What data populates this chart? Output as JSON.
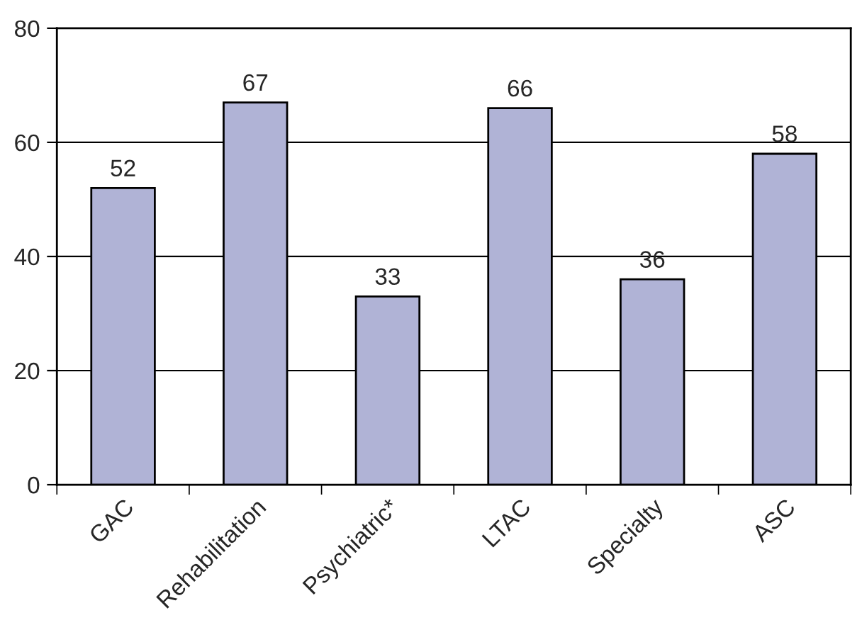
{
  "chart_data": {
    "type": "bar",
    "categories": [
      "GAC",
      "Rehabilitation",
      "Psychiatric*",
      "LTAC",
      "Specialty",
      "ASC"
    ],
    "values": [
      52,
      67,
      33,
      66,
      36,
      58
    ],
    "color": "#b0b3d6",
    "ylim": [
      0,
      80
    ],
    "yticks": [
      0,
      20,
      40,
      60,
      80
    ],
    "grid": "y",
    "data_labels": true
  }
}
